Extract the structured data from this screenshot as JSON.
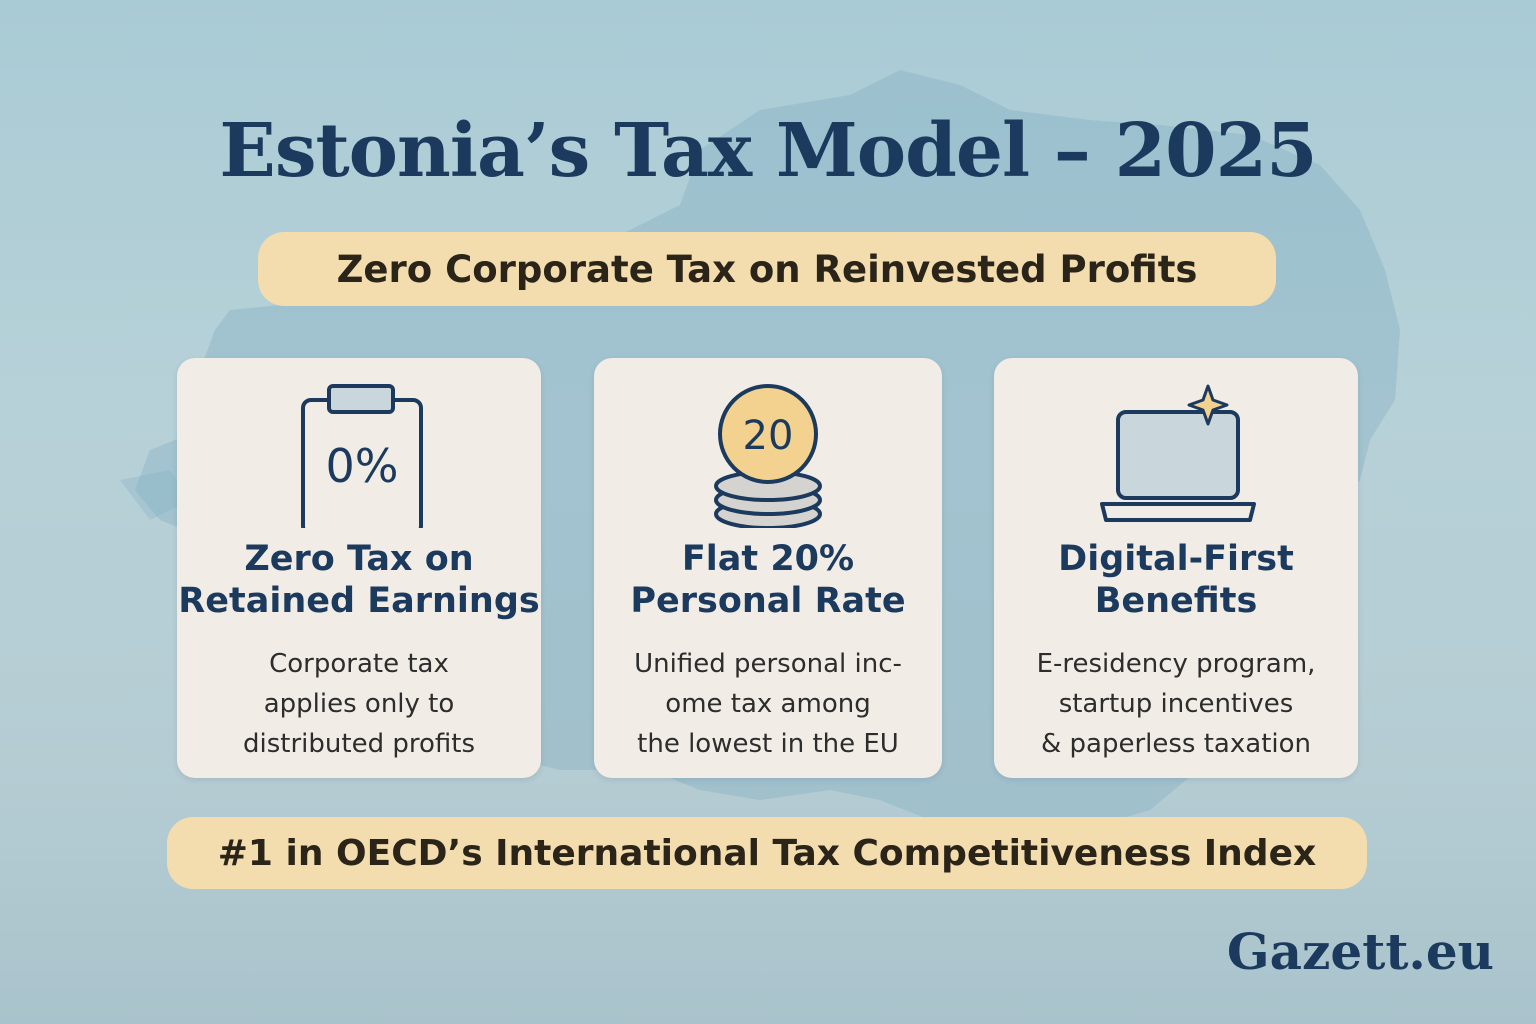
{
  "title": "Estonia’s Tax Model – 2025",
  "headline": "Zero Corporate Tax on Reinvested Profits",
  "cards": [
    {
      "icon": "clipboard-icon",
      "icon_text": "0%",
      "title_lines": [
        "Zero Tax on",
        "Retained Earnings"
      ],
      "desc_lines": [
        "Corporate tax",
        "applies only to",
        "distributed profits"
      ]
    },
    {
      "icon": "coin-stack-icon",
      "icon_text": "20",
      "title_lines": [
        "Flat 20%",
        "Personal Rate"
      ],
      "desc_lines": [
        "Unified personal inc-",
        "ome tax among",
        "the lowest in the EU"
      ]
    },
    {
      "icon": "laptop-sparkle-icon",
      "title_lines": [
        "Digital-First",
        "Benefits"
      ],
      "desc_lines": [
        "E-residency program,",
        "startup incentives",
        "& paperless taxation"
      ]
    }
  ],
  "ranking": "#1 in OECD’s International Tax Competitiveness Index",
  "brand": "Gazett.eu",
  "colors": {
    "navy": "#1b3a5e",
    "gold": "#f3dcae",
    "card": "#f1ede6",
    "background": "#b3ced6"
  }
}
